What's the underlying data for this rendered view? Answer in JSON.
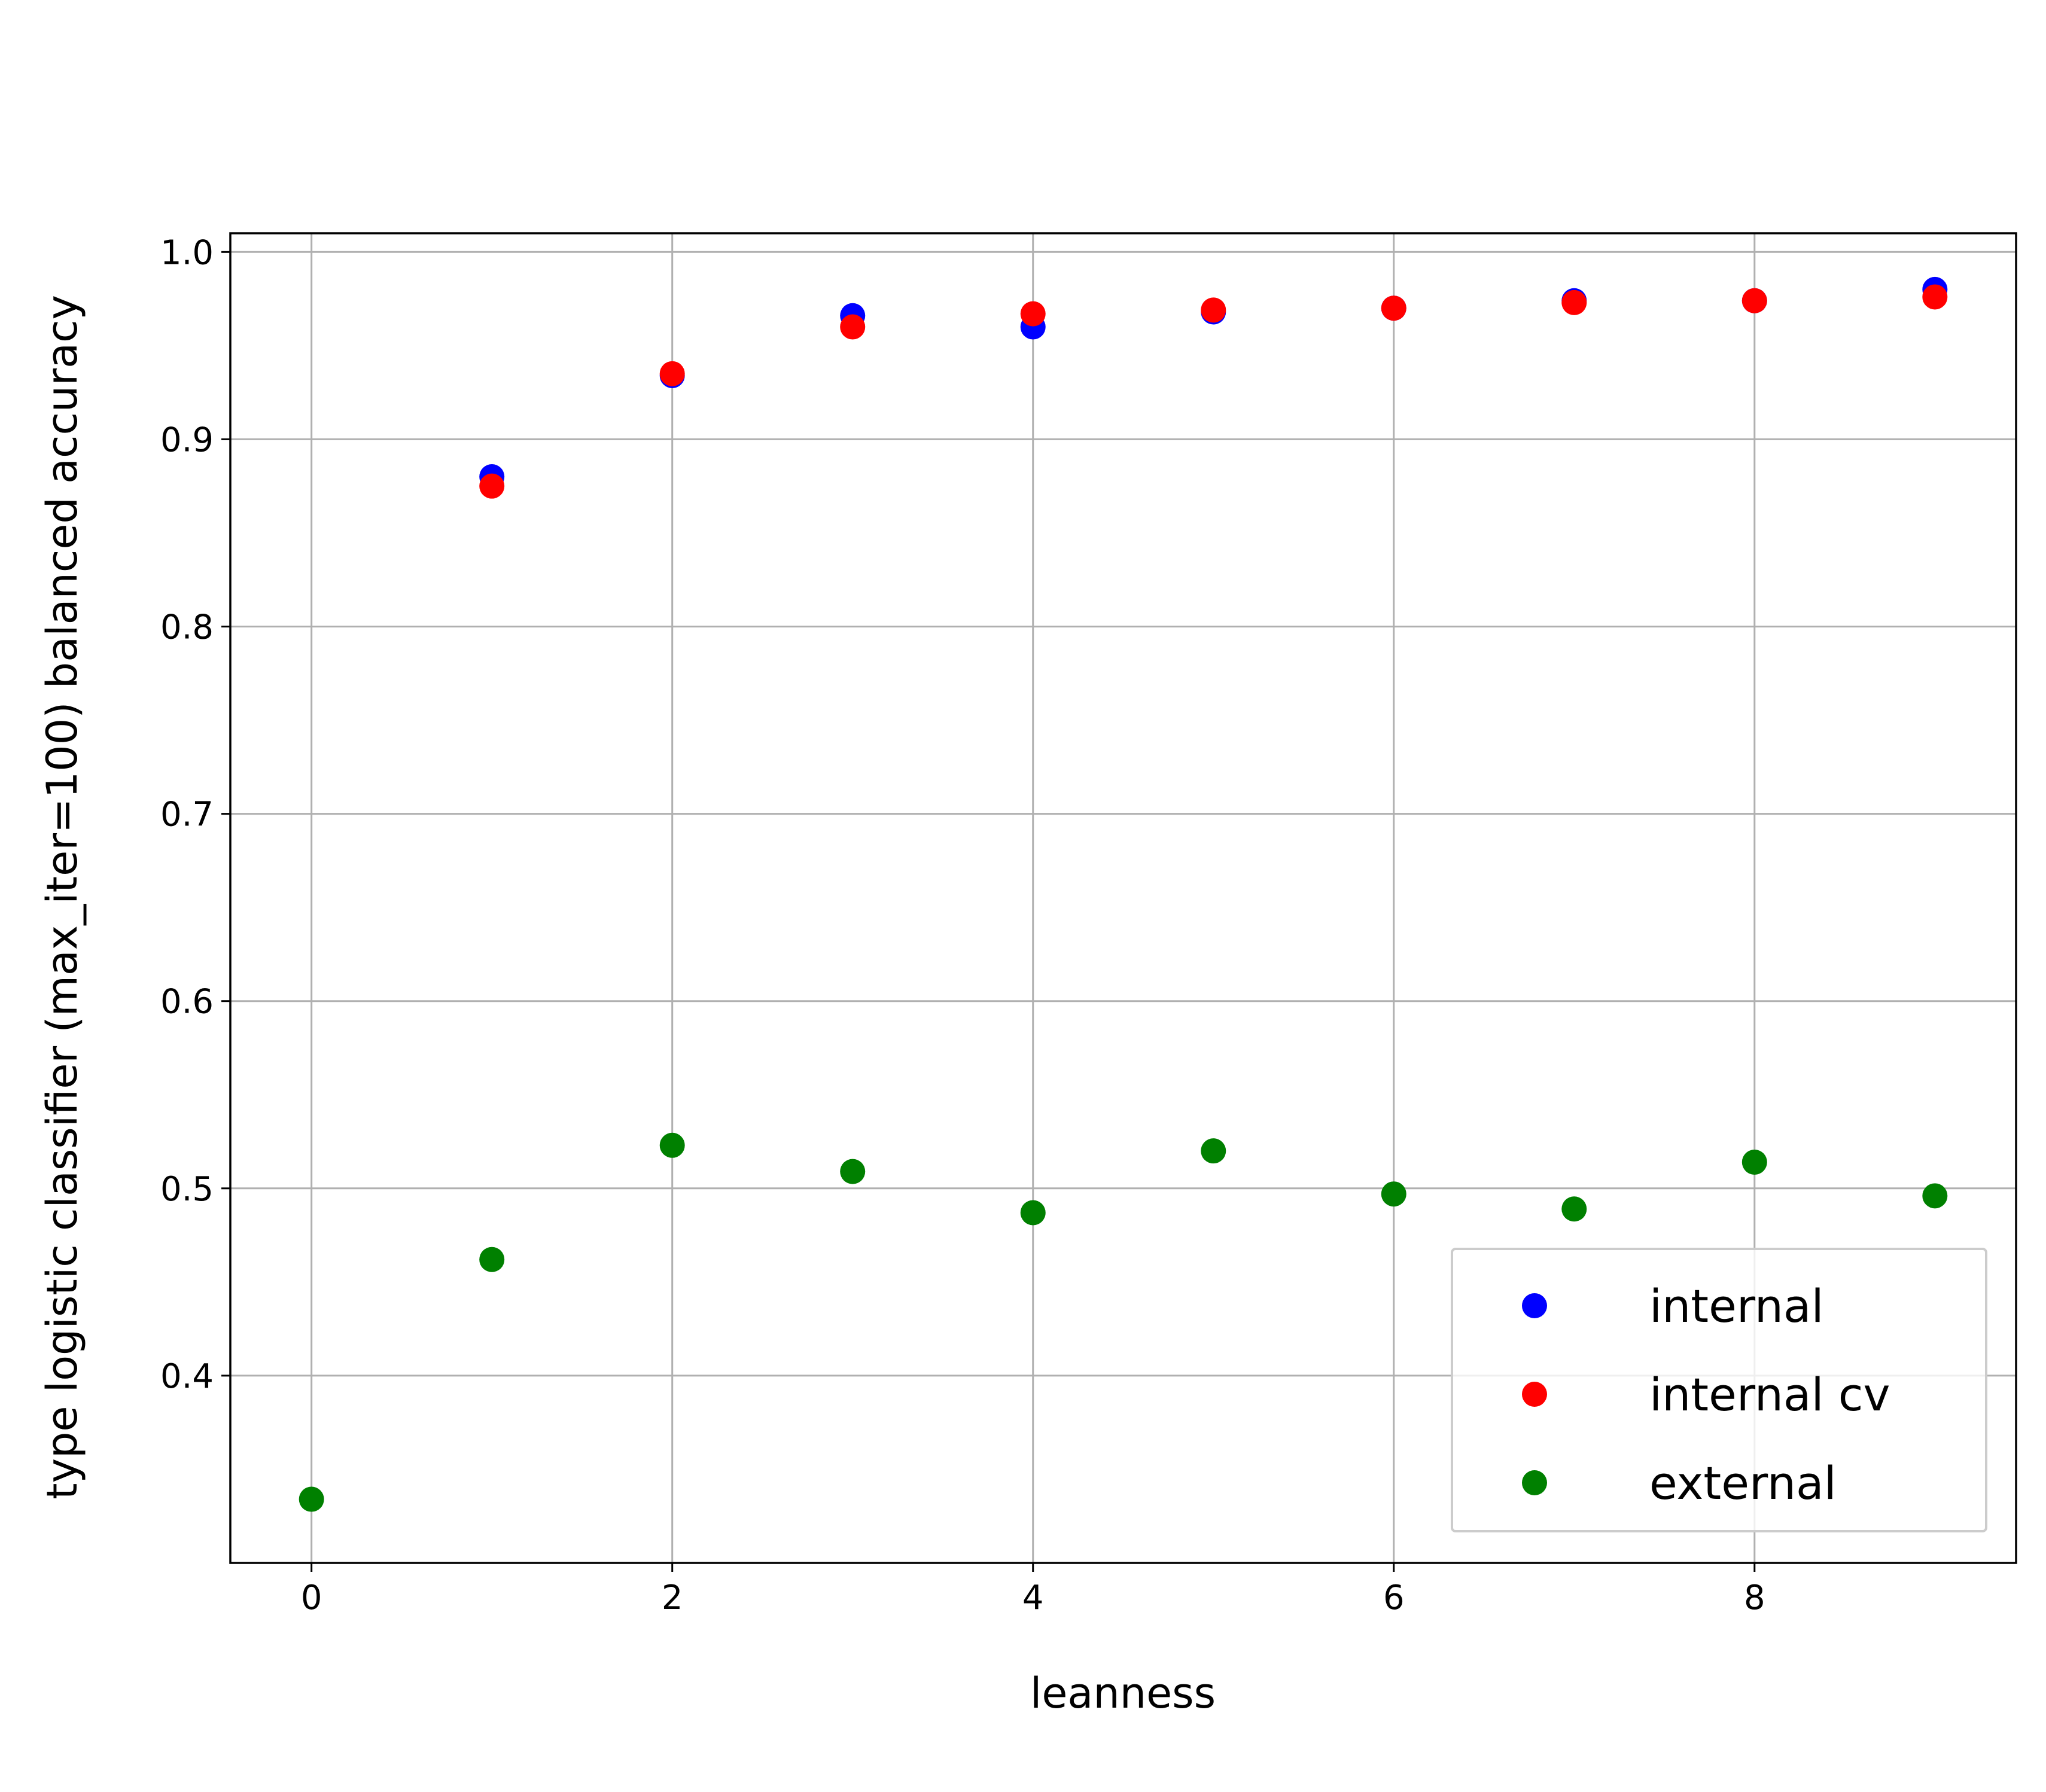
{
  "chart_data": {
    "type": "scatter",
    "title": "",
    "xlabel": "leanness",
    "ylabel": "type logistic classifier (max_iter=100) balanced accuracy",
    "xlim": [
      -0.45,
      9.45
    ],
    "ylim": [
      0.3,
      1.01
    ],
    "xticks": [
      0,
      2,
      4,
      6,
      8
    ],
    "yticks": [
      0.4,
      0.5,
      0.6,
      0.7,
      0.8,
      0.9,
      1.0
    ],
    "xtick_labels": [
      "0",
      "2",
      "4",
      "6",
      "8"
    ],
    "ytick_labels": [
      "0.4",
      "0.5",
      "0.6",
      "0.7",
      "0.8",
      "0.9",
      "1.0"
    ],
    "grid": true,
    "legend_position": "lower-right",
    "series": [
      {
        "name": "internal",
        "color": "#0000ff",
        "x": [
          1,
          2,
          3,
          4,
          5,
          6,
          7,
          8,
          9
        ],
        "y": [
          0.88,
          0.934,
          0.966,
          0.96,
          0.968,
          0.97,
          0.974,
          0.974,
          0.98
        ]
      },
      {
        "name": "internal cv",
        "color": "#ff0000",
        "x": [
          1,
          2,
          3,
          4,
          5,
          6,
          7,
          8,
          9
        ],
        "y": [
          0.875,
          0.935,
          0.96,
          0.967,
          0.969,
          0.97,
          0.973,
          0.974,
          0.976
        ]
      },
      {
        "name": "external",
        "color": "#008000",
        "x": [
          0,
          1,
          2,
          3,
          4,
          5,
          6,
          7,
          8,
          9
        ],
        "y": [
          0.334,
          0.462,
          0.523,
          0.509,
          0.487,
          0.52,
          0.497,
          0.489,
          0.514,
          0.496
        ]
      }
    ]
  }
}
